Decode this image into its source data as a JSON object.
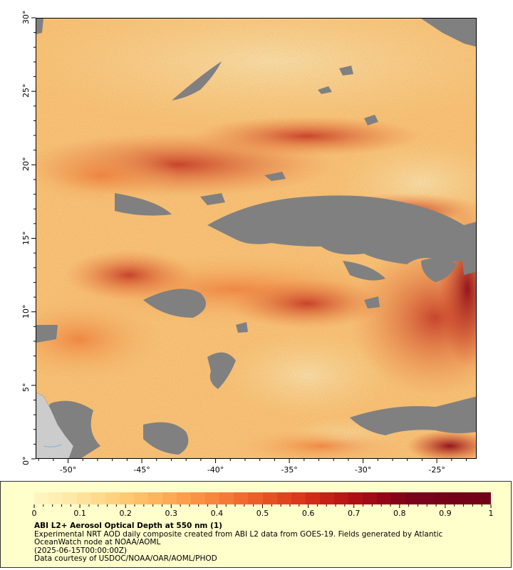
{
  "map": {
    "y_axis_labels": [
      "0°",
      "5°",
      "10°",
      "15°",
      "20°",
      "25°",
      "30°"
    ],
    "x_axis_labels": [
      "-50°",
      "-45°",
      "-40°",
      "-35°",
      "-30°",
      "-25°"
    ],
    "lon_range": [
      -52.2,
      -22.3
    ],
    "lat_range": [
      0,
      30
    ],
    "no_data_color": "#808080",
    "land_color": "#cccccc"
  },
  "colorbar": {
    "labels": [
      "0",
      "0.1",
      "0.2",
      "0.3",
      "0.4",
      "0.5",
      "0.6",
      "0.7",
      "0.8",
      "0.9",
      "1"
    ],
    "colors": [
      "#fff4c0",
      "#ffefb3",
      "#ffe9a6",
      "#ffe299",
      "#ffda8c",
      "#ffd280",
      "#ffc873",
      "#ffbe68",
      "#ffb45e",
      "#fea955",
      "#fc9e4c",
      "#fa9245",
      "#f7863e",
      "#f47a37",
      "#f06c30",
      "#ec5f2a",
      "#e65124",
      "#e0441f",
      "#d9381b",
      "#d02c18",
      "#c62116",
      "#bb1715",
      "#ae0f15",
      "#a10a16",
      "#930617",
      "#850418",
      "#790319",
      "#78031a",
      "#760219",
      "#740118",
      "#730118",
      "#720018"
    ],
    "range": [
      0,
      1
    ]
  },
  "legend": {
    "title": "ABI L2+ Aerosol Optical Depth at 550 nm (1)",
    "line1": "Experimental NRT AOD daily composite created from ABI L2 data from GOES-19. Fields generated by Atlantic OceanWatch node at NOAA/AOML",
    "line2": "(2025-06-15T00:00:00Z)",
    "line3": "Data courtesy of USDOC/NOAA/OAR/AOML/PHOD"
  }
}
